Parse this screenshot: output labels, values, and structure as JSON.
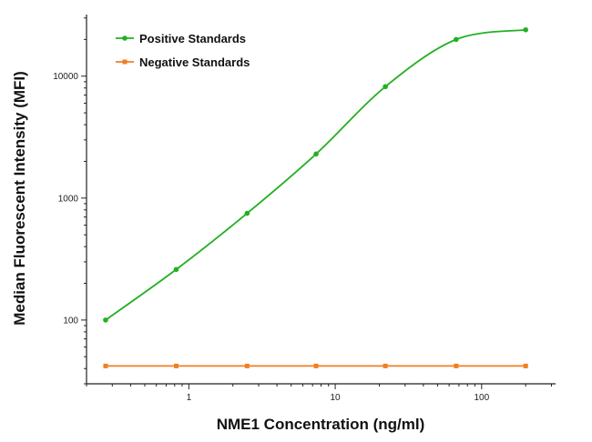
{
  "chart_data": {
    "type": "line",
    "title": "",
    "xlabel": "NME1 Concentration (ng/ml)",
    "ylabel": "Median Fluorescent Intensity (MFI)",
    "xscale": "log",
    "yscale": "log",
    "xlim": [
      0.2,
      320
    ],
    "ylim": [
      30,
      32000
    ],
    "x_ticks": [
      {
        "value": 1,
        "label": "1"
      },
      {
        "value": 10,
        "label": "10"
      },
      {
        "value": 100,
        "label": "100"
      }
    ],
    "y_ticks": [
      {
        "value": 100,
        "label": "100"
      },
      {
        "value": 1000,
        "label": "1000"
      },
      {
        "value": 10000,
        "label": "10000"
      }
    ],
    "grid": false,
    "legend_position": "top-left",
    "series": [
      {
        "name": "Positive Standards",
        "color": "#22b022",
        "marker": "circle",
        "curve": "sigmoid-fit",
        "x": [
          0.27,
          0.82,
          2.5,
          7.4,
          22,
          67,
          200
        ],
        "y": [
          100,
          260,
          750,
          2300,
          8200,
          20000,
          24000
        ]
      },
      {
        "name": "Negative Standards",
        "color": "#f07f22",
        "marker": "square",
        "curve": "straight",
        "x": [
          0.27,
          0.82,
          2.5,
          7.4,
          22,
          67,
          200
        ],
        "y": [
          42,
          42,
          42,
          42,
          42,
          42,
          42
        ]
      }
    ]
  }
}
